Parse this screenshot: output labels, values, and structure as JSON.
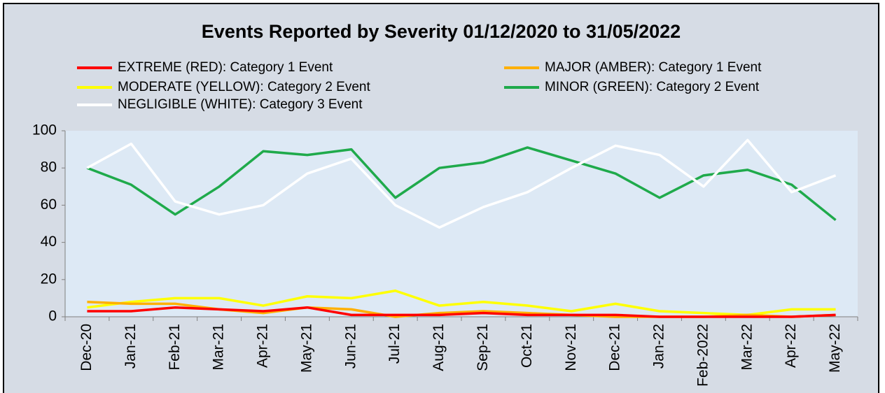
{
  "chart_data": {
    "type": "line",
    "title": "Events Reported by Severity 01/12/2020 to 31/05/2022",
    "categories": [
      "Dec-20",
      "Jan-21",
      "Feb-21",
      "Mar-21",
      "Apr-21",
      "May-21",
      "Jun-21",
      "Jul-21",
      "Aug-21",
      "Sep-21",
      "Oct-21",
      "Nov-21",
      "Dec-21",
      "Jan-22",
      "Feb-2022",
      "Mar-22",
      "Apr-22",
      "May-22"
    ],
    "series": [
      {
        "name": "EXTREME (RED): Category 1 Event",
        "color": "#ff0000",
        "values": [
          3,
          3,
          5,
          4,
          3,
          5,
          1,
          1,
          1,
          2,
          1,
          1,
          1,
          0,
          0,
          0,
          0,
          1
        ]
      },
      {
        "name": "MAJOR (AMBER): Category 1 Event",
        "color": "#ffb000",
        "values": [
          8,
          7,
          7,
          4,
          2,
          5,
          4,
          0,
          2,
          3,
          2,
          1,
          0,
          0,
          0,
          1,
          0,
          1
        ]
      },
      {
        "name": "MODERATE (YELLOW): Category 2 Event",
        "color": "#ffff00",
        "values": [
          5,
          8,
          10,
          10,
          6,
          11,
          10,
          14,
          6,
          8,
          6,
          3,
          7,
          3,
          2,
          1,
          4,
          4
        ]
      },
      {
        "name": "MINOR (GREEN): Category 2 Event",
        "color": "#1faa4b",
        "values": [
          80,
          71,
          55,
          70,
          89,
          87,
          90,
          64,
          80,
          83,
          91,
          84,
          77,
          64,
          76,
          79,
          71,
          52
        ]
      },
      {
        "name": "NEGLIGIBLE (WHITE): Category 3 Event",
        "color": "#ffffff",
        "values": [
          80,
          93,
          62,
          55,
          60,
          77,
          85,
          60,
          48,
          59,
          67,
          80,
          92,
          87,
          70,
          95,
          67,
          76
        ]
      }
    ],
    "ylim": [
      0,
      100
    ],
    "yticks": [
      0,
      20,
      40,
      60,
      80,
      100
    ]
  }
}
